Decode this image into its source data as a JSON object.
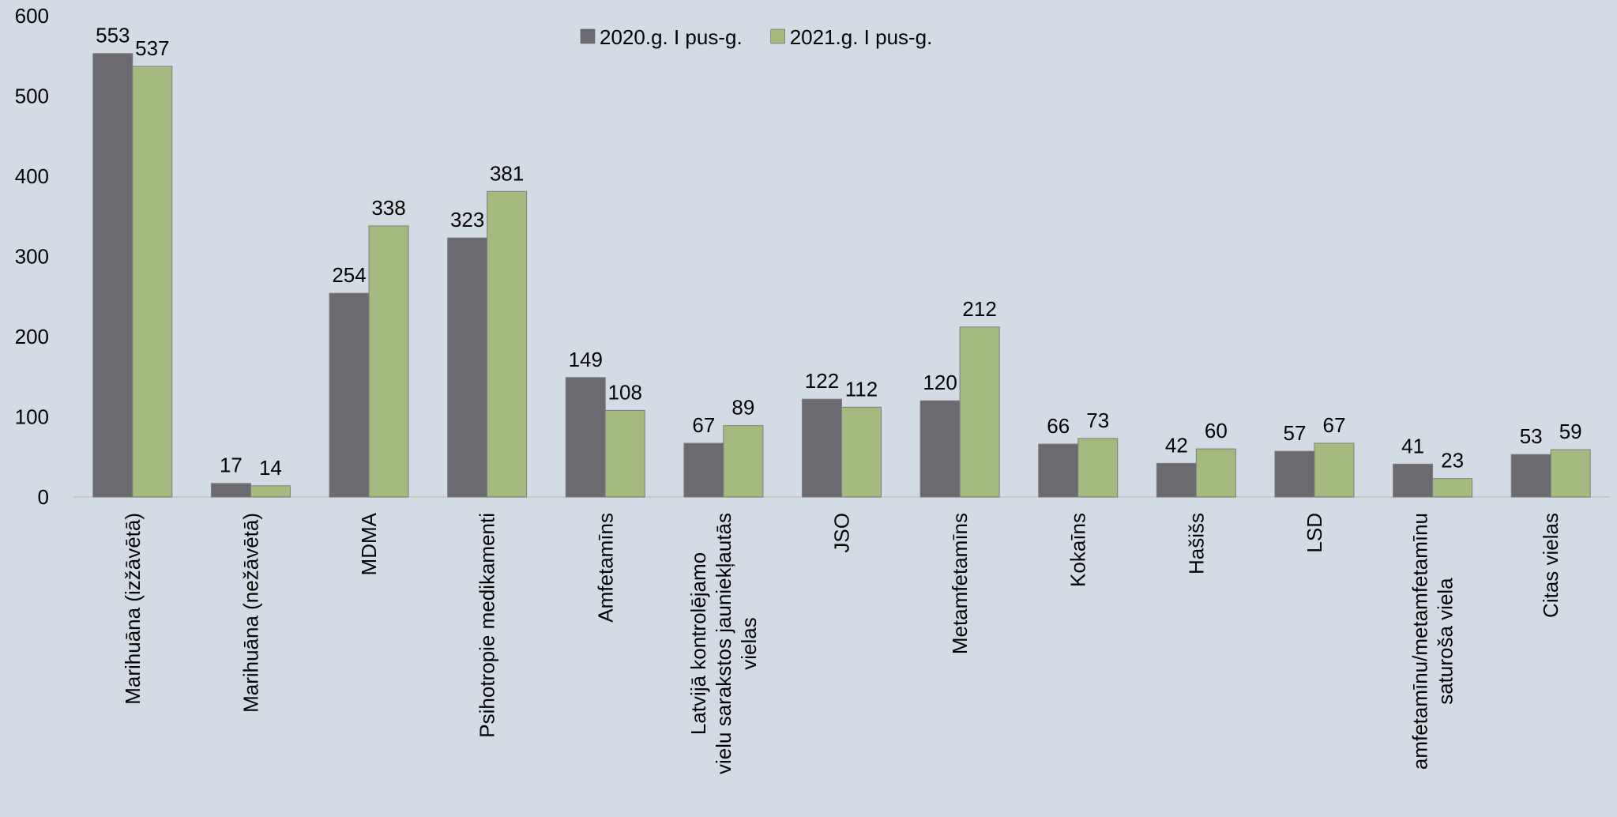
{
  "chart_data": {
    "type": "bar",
    "categories": [
      "Marihuāna (izžāvētā)",
      "Marihuāna (nežāvētā)",
      "MDMA",
      "Psihotropie medikamenti",
      "Amfetamīns",
      "Latvijā kontrolējamo\nvielu sarakstos jauniekļautās\nvielas",
      "JSO",
      "Metamfetamīns",
      "Kokaīns",
      "Hašišs",
      "LSD",
      "amfetamīnu/metamfetamīnu\nsaturoša viela",
      "Citas vielas"
    ],
    "series": [
      {
        "name": "2020.g. I pus-g.",
        "color": "#6b6a70",
        "values": [
          553,
          17,
          254,
          323,
          149,
          67,
          122,
          120,
          66,
          42,
          57,
          41,
          53
        ]
      },
      {
        "name": "2021.g. I pus-g.",
        "color": "#a5ba7f",
        "values": [
          537,
          14,
          338,
          381,
          108,
          89,
          112,
          212,
          73,
          60,
          67,
          23,
          59
        ]
      }
    ],
    "ylim": [
      0,
      600
    ],
    "yticks": [
      0,
      100,
      200,
      300,
      400,
      500,
      600
    ],
    "legend": "top"
  }
}
